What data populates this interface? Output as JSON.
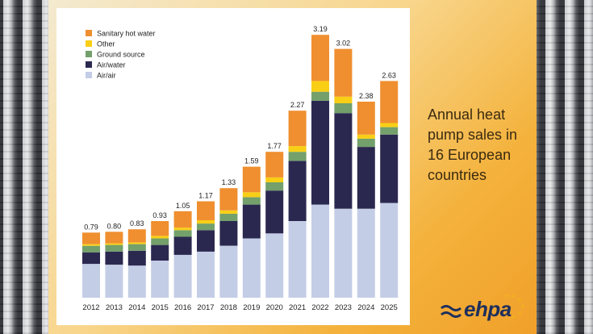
{
  "caption": "Annual heat pump sales in 16 European countries",
  "logo_text": "ehpa",
  "colors": {
    "Sanitary hot water": "#ef8f2f",
    "Other": "#f9cf16",
    "Ground source": "#73a06b",
    "Air/water": "#2b2850",
    "Air/air": "#c4cde6"
  },
  "chart_data": {
    "type": "bar",
    "stacked": true,
    "categories": [
      "2012",
      "2013",
      "2014",
      "2015",
      "2016",
      "2017",
      "2018",
      "2019",
      "2020",
      "2021",
      "2022",
      "2023",
      "2024",
      "2025"
    ],
    "totals": [
      "0.79",
      "0.80",
      "0.83",
      "0.93",
      "1.05",
      "1.17",
      "1.33",
      "1.59",
      "1.77",
      "2.27",
      "3.19",
      "3.02",
      "2.38",
      "2.63"
    ],
    "series": [
      {
        "name": "Air/air",
        "values": [
          0.41,
          0.4,
          0.39,
          0.45,
          0.52,
          0.56,
          0.63,
          0.72,
          0.78,
          0.93,
          1.13,
          1.08,
          1.08,
          1.15
        ]
      },
      {
        "name": "Air/water",
        "values": [
          0.14,
          0.16,
          0.18,
          0.19,
          0.22,
          0.26,
          0.3,
          0.41,
          0.52,
          0.73,
          1.26,
          1.16,
          0.75,
          0.83
        ]
      },
      {
        "name": "Ground source",
        "values": [
          0.08,
          0.08,
          0.08,
          0.08,
          0.08,
          0.08,
          0.09,
          0.09,
          0.1,
          0.11,
          0.11,
          0.12,
          0.1,
          0.09
        ]
      },
      {
        "name": "Other",
        "values": [
          0.02,
          0.02,
          0.02,
          0.03,
          0.03,
          0.04,
          0.04,
          0.06,
          0.06,
          0.07,
          0.13,
          0.08,
          0.05,
          0.05
        ]
      },
      {
        "name": "Sanitary hot water",
        "values": [
          0.14,
          0.14,
          0.16,
          0.18,
          0.2,
          0.23,
          0.27,
          0.31,
          0.31,
          0.43,
          0.56,
          0.58,
          0.4,
          0.51
        ]
      }
    ],
    "legend_order": [
      "Sanitary hot water",
      "Other",
      "Ground source",
      "Air/water",
      "Air/air"
    ],
    "legend_position": "top-left",
    "ylim": [
      0,
      3.3
    ],
    "grid": false
  }
}
